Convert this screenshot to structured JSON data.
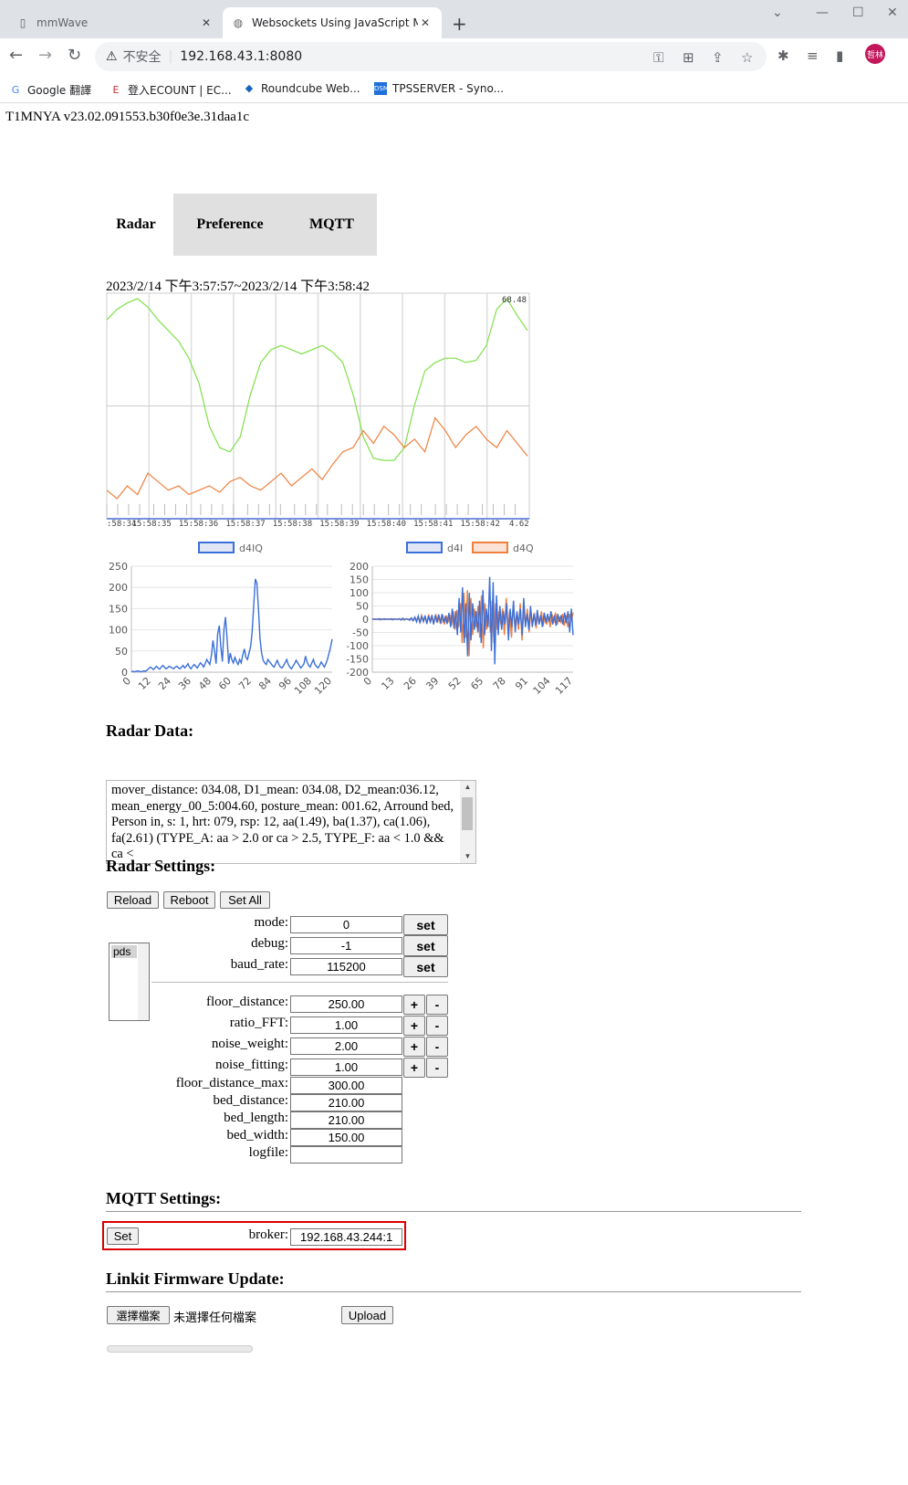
{
  "browser": {
    "tabs": [
      {
        "title": "mmWave",
        "active": false
      },
      {
        "title": "Websockets Using JavaScript M",
        "active": true
      }
    ],
    "address": {
      "security": "不安全",
      "url": "192.168.43.1:8080"
    },
    "bookmarks": [
      "Google 翻譯",
      "登入ECOUNT | EC...",
      "Roundcube Web...",
      "TPSSERVER - Syno..."
    ],
    "avatar_text": "哲林"
  },
  "page": {
    "version": "T1MNYA v23.02.091553.b30f0e3e.31daa1c",
    "nav_tabs": [
      "Radar",
      "Preference",
      "MQTT"
    ],
    "time_range": "2023/2/14 下午3:57:57~2023/2/14 下午3:58:42"
  },
  "chart_data": [
    {
      "type": "line",
      "title": "",
      "x_tick_labels": [
        ":58:34",
        "15:58:35",
        "15:58:36",
        "15:58:37",
        "15:58:38",
        "15:58:39",
        "15:58:40",
        "15:58:41",
        "15:58:42",
        "4.62"
      ],
      "top_label": "68.48",
      "grid": true,
      "series": [
        {
          "color": "#7fe04a",
          "values": [
            90,
            95,
            98,
            100,
            96,
            90,
            85,
            80,
            72,
            60,
            40,
            30,
            28,
            35,
            55,
            70,
            76,
            78,
            76,
            74,
            76,
            78,
            75,
            70,
            55,
            35,
            25,
            24,
            24,
            30,
            50,
            66,
            70,
            72,
            72,
            70,
            71,
            78,
            95,
            100,
            92,
            85
          ]
        },
        {
          "color": "#f07f3c",
          "values": [
            10,
            6,
            12,
            8,
            18,
            14,
            10,
            12,
            8,
            10,
            12,
            9,
            14,
            16,
            12,
            10,
            14,
            18,
            12,
            16,
            20,
            15,
            22,
            28,
            30,
            38,
            32,
            40,
            36,
            30,
            34,
            28,
            44,
            38,
            30,
            36,
            40,
            34,
            30,
            38,
            32,
            26
          ]
        }
      ]
    },
    {
      "type": "line",
      "legend": [
        "d4IQ"
      ],
      "legend_position": "top",
      "ylim": [
        0,
        250
      ],
      "y_ticks": [
        0,
        50,
        100,
        150,
        200,
        250
      ],
      "x_ticks": [
        "0",
        "12",
        "24",
        "36",
        "48",
        "60",
        "72",
        "84",
        "96",
        "108",
        "120"
      ],
      "series": [
        {
          "name": "d4IQ",
          "color": "#3b6fd9",
          "values": [
            1,
            2,
            1,
            2,
            3,
            2,
            1,
            2,
            3,
            2,
            5,
            8,
            12,
            10,
            6,
            10,
            14,
            10,
            7,
            12,
            16,
            12,
            8,
            10,
            14,
            12,
            10,
            8,
            12,
            14,
            10,
            8,
            12,
            16,
            10,
            14,
            20,
            12,
            8,
            14,
            18,
            14,
            10,
            16,
            22,
            18,
            12,
            20,
            30,
            24,
            18,
            40,
            75,
            50,
            20,
            90,
            110,
            60,
            25,
            100,
            130,
            80,
            20,
            45,
            30,
            22,
            35,
            25,
            18,
            30,
            22,
            40,
            55,
            35,
            30,
            45,
            60,
            95,
            160,
            220,
            210,
            150,
            80,
            45,
            28,
            22,
            18,
            30,
            25,
            20,
            15,
            12,
            20,
            28,
            18,
            12,
            10,
            15,
            22,
            30,
            18,
            12,
            8,
            14,
            20,
            28,
            22,
            16,
            10,
            14,
            20,
            38,
            24,
            16,
            12,
            22,
            30,
            18,
            14,
            10,
            16,
            24,
            18,
            12,
            20,
            30,
            45,
            60,
            78
          ]
        }
      ]
    },
    {
      "type": "line",
      "legend": [
        "d4I",
        "d4Q"
      ],
      "legend_position": "top",
      "ylim": [
        -200,
        200
      ],
      "y_ticks": [
        200,
        150,
        100,
        50,
        0,
        -50,
        -100,
        -150,
        -200
      ],
      "x_ticks": [
        "0",
        "13",
        "26",
        "39",
        "52",
        "65",
        "78",
        "91",
        "104",
        "117"
      ],
      "series": [
        {
          "name": "d4I",
          "color": "#3b6fd9",
          "values": [
            0,
            1,
            -1,
            0,
            2,
            -2,
            1,
            -1,
            0,
            1,
            -1,
            2,
            -2,
            0,
            1,
            -1,
            2,
            -3,
            3,
            -2,
            1,
            0,
            -4,
            5,
            -6,
            8,
            -10,
            12,
            -15,
            10,
            -8,
            14,
            -18,
            12,
            -10,
            16,
            -20,
            14,
            -12,
            18,
            -16,
            20,
            -14,
            12,
            -18,
            24,
            -30,
            40,
            -35,
            30,
            -60,
            80,
            -50,
            120,
            -90,
            60,
            -140,
            100,
            -80,
            60,
            -40,
            30,
            -50,
            70,
            -90,
            110,
            -60,
            40,
            -30,
            160,
            -120,
            140,
            -170,
            90,
            -60,
            50,
            -40,
            30,
            -20,
            60,
            -80,
            40,
            -30,
            70,
            -50,
            30,
            -20,
            40,
            -60,
            80,
            -30,
            20,
            -40,
            50,
            -30,
            20,
            -25,
            35,
            -20,
            15,
            -30,
            25,
            -15,
            20,
            -10,
            30,
            -20,
            15,
            -25,
            20,
            -10,
            15,
            -20,
            25,
            -15,
            30,
            -50,
            40,
            -60
          ]
        },
        {
          "name": "d4Q",
          "color": "#f07f3c",
          "values": [
            0,
            -1,
            1,
            0,
            -2,
            1,
            -1,
            2,
            0,
            -1,
            1,
            -2,
            2,
            0,
            -1,
            1,
            -2,
            3,
            -3,
            2,
            -1,
            0,
            4,
            -5,
            6,
            -8,
            10,
            -12,
            15,
            -10,
            8,
            -14,
            18,
            -12,
            10,
            -16,
            20,
            -14,
            12,
            -18,
            16,
            -20,
            14,
            -12,
            18,
            -24,
            30,
            -40,
            35,
            -30,
            60,
            -90,
            100,
            -70,
            110,
            -140,
            80,
            -60,
            40,
            -30,
            50,
            -70,
            90,
            -110,
            60,
            -40,
            30,
            -50,
            70,
            -90,
            60,
            -40,
            30,
            -20,
            40,
            -60,
            80,
            -40,
            30,
            -70,
            50,
            -30,
            20,
            -40,
            60,
            -80,
            30,
            -20,
            40,
            -50,
            30,
            -20,
            25,
            -35,
            20,
            -15,
            30,
            -25,
            15,
            -20,
            10,
            -30,
            20,
            -15,
            25,
            -20,
            10,
            -15,
            20,
            -25,
            15,
            -30,
            20,
            -10,
            25
          ]
        }
      ]
    }
  ],
  "radar_data": {
    "title": "Radar Data:",
    "text": "mover_distance: 034.08, D1_mean: 034.08, D2_mean:036.12, mean_energy_00_5:004.60, posture_mean: 001.62, Arround bed, Person in, s: 1, hrt: 079, rsp: 12, aa(1.49), ba(1.37), ca(1.06), fa(2.61) (TYPE_A: aa > 2.0 or ca > 2.5, TYPE_F: aa < 1.0 && ca < "
  },
  "radar_settings": {
    "title": "Radar Settings:",
    "buttons": [
      "Reload",
      "Reboot",
      "Set All"
    ],
    "list_option": "pds",
    "set_label": "set",
    "plus_label": "+",
    "minus_label": "-",
    "set_fields": [
      {
        "label": "mode:",
        "value": "0"
      },
      {
        "label": "debug:",
        "value": "-1"
      },
      {
        "label": "baud_rate:",
        "value": "115200"
      }
    ],
    "pm_fields": [
      {
        "label": "floor_distance:",
        "value": "250.00"
      },
      {
        "label": "ratio_FFT:",
        "value": "1.00"
      },
      {
        "label": "noise_weight:",
        "value": "2.00"
      },
      {
        "label": "noise_fitting:",
        "value": "1.00"
      }
    ],
    "plain_fields": [
      {
        "label": "floor_distance_max:",
        "value": "300.00"
      },
      {
        "label": "bed_distance:",
        "value": "210.00"
      },
      {
        "label": "bed_length:",
        "value": "210.00"
      },
      {
        "label": "bed_width:",
        "value": "150.00"
      },
      {
        "label": "logfile:",
        "value": ""
      }
    ]
  },
  "mqtt": {
    "title": "MQTT Settings:",
    "set_button": "Set",
    "broker_label": "broker:",
    "broker_value": "192.168.43.244:1"
  },
  "firmware": {
    "title": "Linkit Firmware Update:",
    "choose_button": "選擇檔案",
    "no_file": "未選擇任何檔案",
    "upload_button": "Upload"
  }
}
